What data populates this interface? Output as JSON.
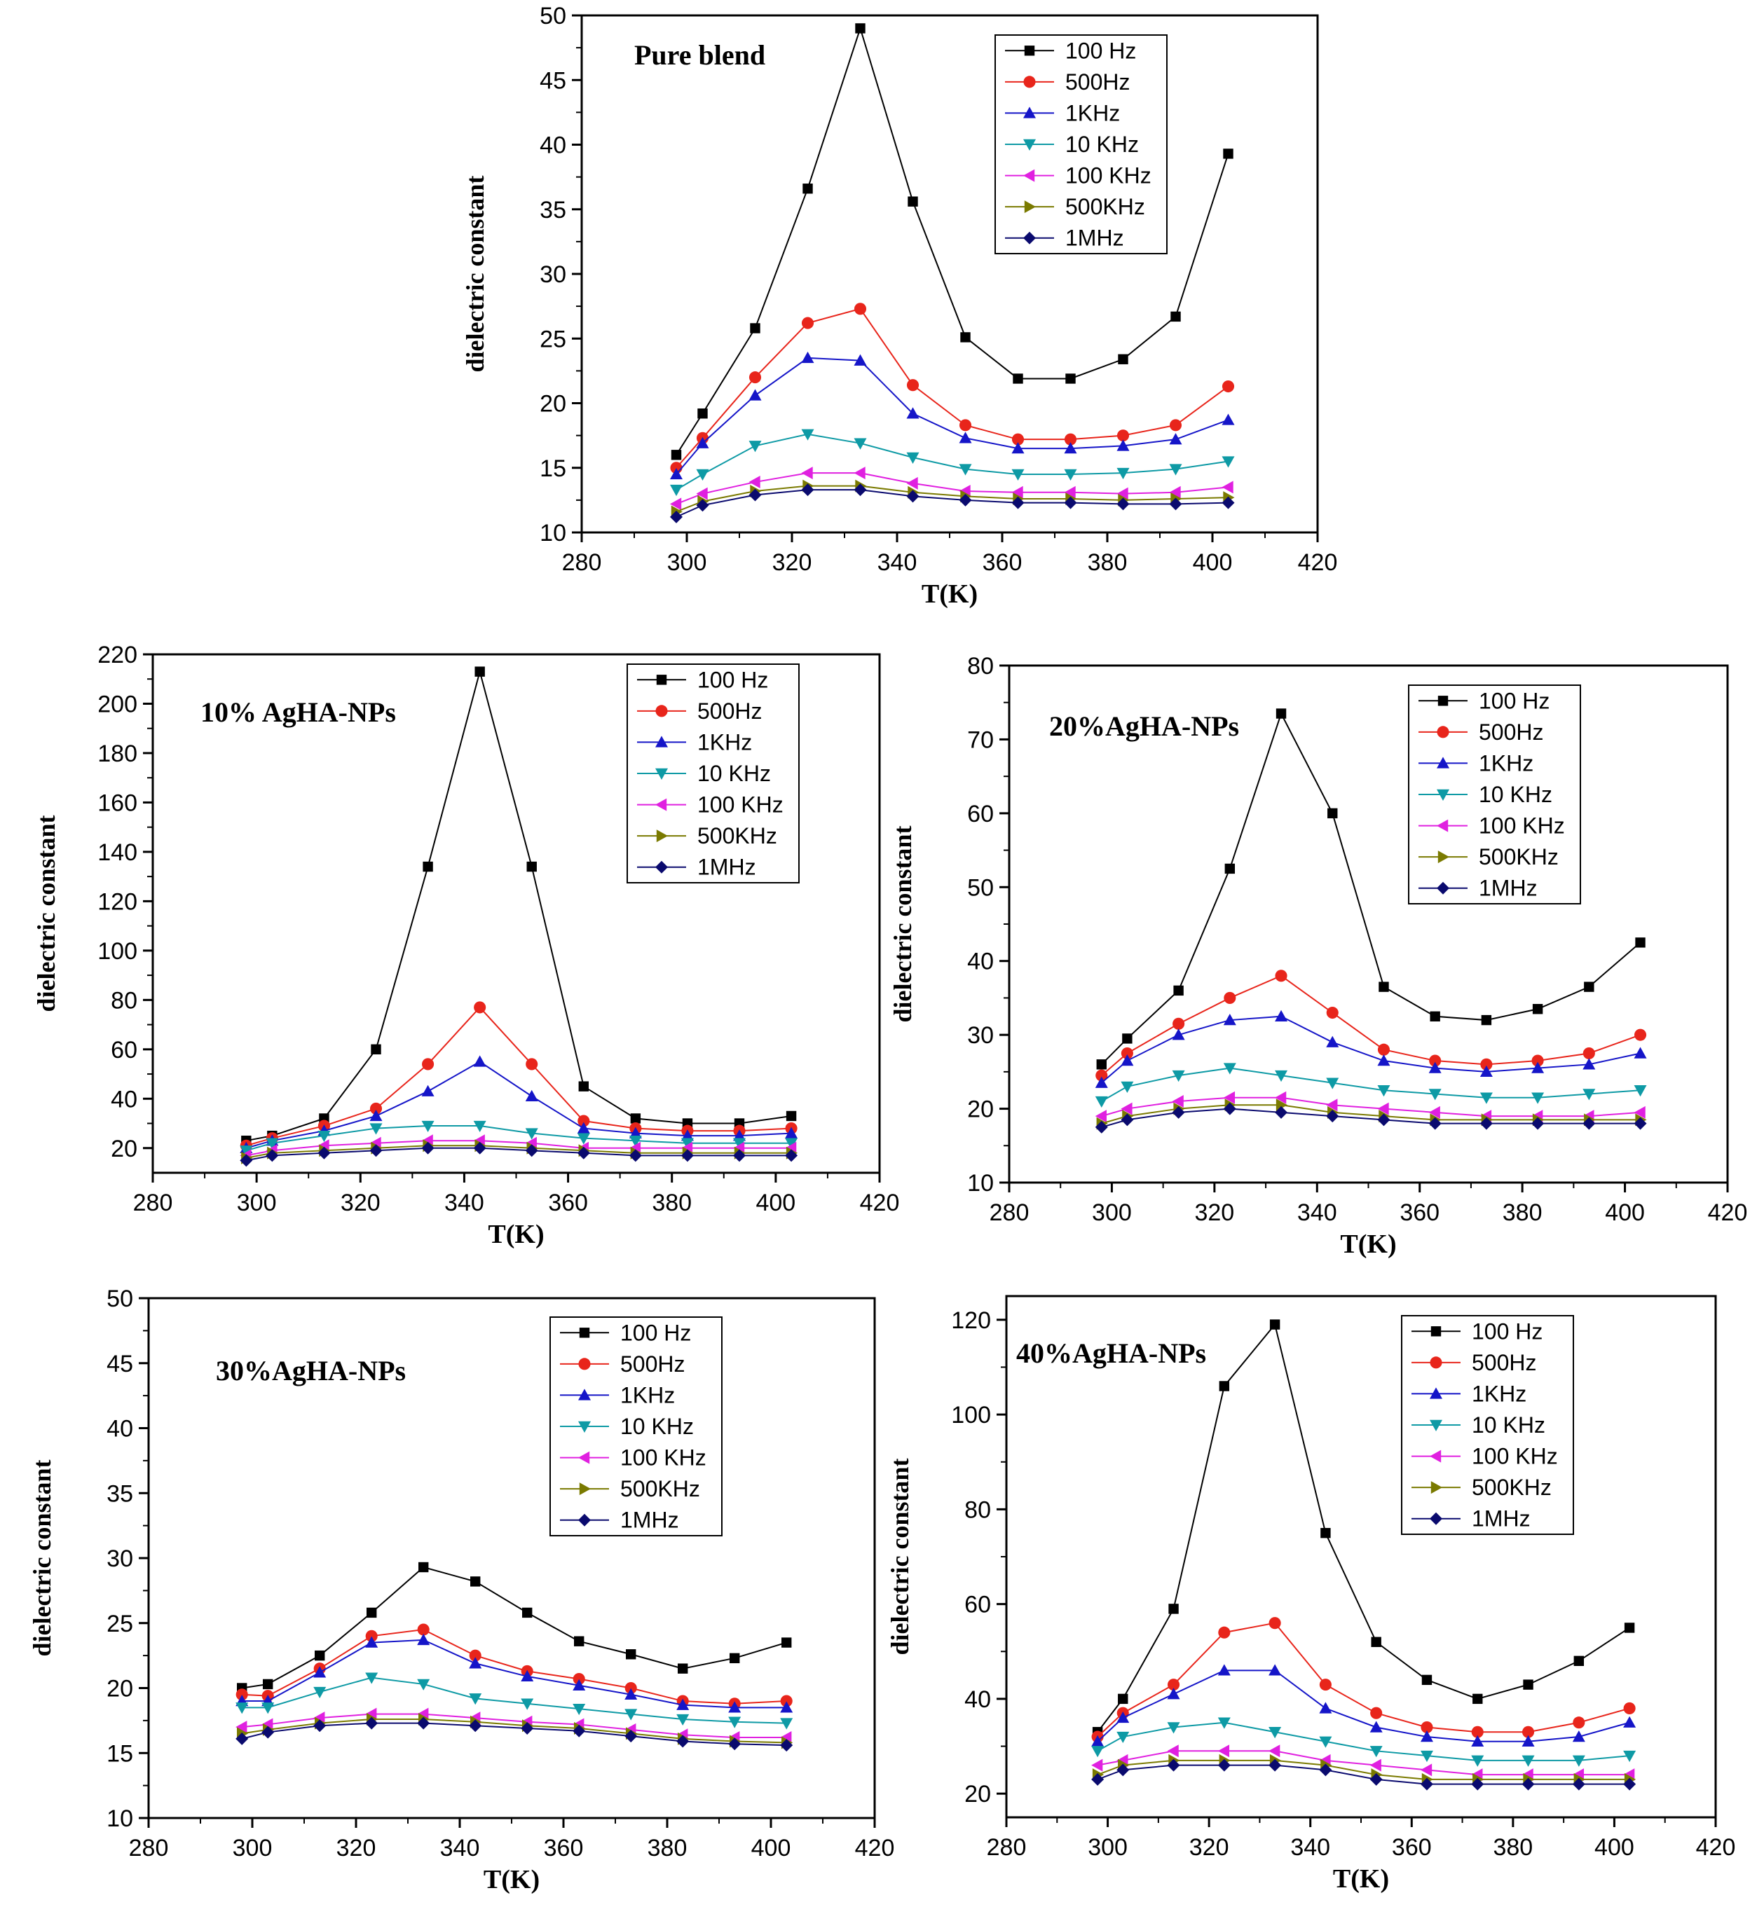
{
  "chart_data": [
    {
      "type": "line",
      "title": "Pure blend",
      "xlabel": "T(K)",
      "ylabel": "dielectric constant",
      "xlim": [
        280,
        420
      ],
      "ylim": [
        10,
        50
      ],
      "xticks": [
        280,
        300,
        320,
        340,
        360,
        380,
        400,
        420
      ],
      "yticks": [
        10,
        15,
        20,
        25,
        30,
        35,
        40,
        45,
        50
      ],
      "x": [
        298,
        303,
        313,
        323,
        333,
        343,
        353,
        363,
        373,
        383,
        393,
        403
      ],
      "legend_position": "top-right",
      "series": [
        {
          "name": "100 Hz",
          "color": "#000000",
          "marker": "square",
          "values": [
            16,
            19.2,
            25.8,
            36.6,
            49,
            35.6,
            25.1,
            21.9,
            21.9,
            23.4,
            26.7,
            39.3
          ]
        },
        {
          "name": "500Hz",
          "color": "#e8251b",
          "marker": "circle",
          "values": [
            15,
            17.3,
            22,
            26.2,
            27.3,
            21.4,
            18.3,
            17.2,
            17.2,
            17.5,
            18.3,
            21.3
          ]
        },
        {
          "name": "1KHz",
          "color": "#1515c8",
          "marker": "triangle-up",
          "values": [
            14.5,
            16.9,
            20.6,
            23.5,
            23.3,
            19.2,
            17.3,
            16.5,
            16.5,
            16.7,
            17.2,
            18.7
          ]
        },
        {
          "name": "10 KHz",
          "color": "#0e9aa5",
          "marker": "triangle-down",
          "values": [
            13.3,
            14.5,
            16.7,
            17.6,
            16.9,
            15.8,
            14.9,
            14.5,
            14.5,
            14.6,
            14.9,
            15.5
          ]
        },
        {
          "name": "100 KHz",
          "color": "#e020e0",
          "marker": "triangle-left",
          "values": [
            12.2,
            13,
            13.9,
            14.6,
            14.6,
            13.8,
            13.2,
            13.1,
            13.1,
            13,
            13.1,
            13.5
          ]
        },
        {
          "name": "500KHz",
          "color": "#7a7a00",
          "marker": "triangle-right",
          "values": [
            11.6,
            12.4,
            13.2,
            13.6,
            13.6,
            13.1,
            12.8,
            12.6,
            12.6,
            12.5,
            12.6,
            12.7
          ]
        },
        {
          "name": "1MHz",
          "color": "#0a0a6e",
          "marker": "diamond",
          "values": [
            11.2,
            12.1,
            12.9,
            13.3,
            13.3,
            12.8,
            12.5,
            12.3,
            12.3,
            12.2,
            12.2,
            12.3
          ]
        }
      ]
    },
    {
      "type": "line",
      "title": "10% AgHA-NPs",
      "xlabel": "T(K)",
      "ylabel": "dielectric constant",
      "xlim": [
        280,
        420
      ],
      "ylim": [
        10,
        220
      ],
      "xticks": [
        280,
        300,
        320,
        340,
        360,
        380,
        400,
        420
      ],
      "yticks": [
        20,
        40,
        60,
        80,
        100,
        120,
        140,
        160,
        180,
        200,
        220
      ],
      "x": [
        298,
        303,
        313,
        323,
        333,
        343,
        353,
        363,
        373,
        383,
        393,
        403
      ],
      "legend_position": "top-right",
      "series": [
        {
          "name": "100 Hz",
          "color": "#000000",
          "marker": "square",
          "values": [
            23,
            25,
            32,
            60,
            134,
            213,
            134,
            45,
            32,
            30,
            30,
            33
          ]
        },
        {
          "name": "500Hz",
          "color": "#e8251b",
          "marker": "circle",
          "values": [
            21,
            24,
            29,
            36,
            54,
            77,
            54,
            31,
            28,
            27,
            27,
            28
          ]
        },
        {
          "name": "1KHz",
          "color": "#1515c8",
          "marker": "triangle-up",
          "values": [
            20,
            23,
            27,
            33,
            43,
            55,
            41,
            28,
            26,
            25,
            25,
            26
          ]
        },
        {
          "name": "10 KHz",
          "color": "#0e9aa5",
          "marker": "triangle-down",
          "values": [
            19,
            22,
            25,
            28,
            29,
            29,
            26,
            24,
            23,
            22,
            22,
            22
          ]
        },
        {
          "name": "100 KHz",
          "color": "#e020e0",
          "marker": "triangle-left",
          "values": [
            17,
            19,
            21,
            22,
            23,
            23,
            22,
            20,
            20,
            20,
            20,
            20
          ]
        },
        {
          "name": "500KHz",
          "color": "#7a7a00",
          "marker": "triangle-right",
          "values": [
            16,
            18,
            19,
            20,
            21,
            21,
            20,
            19,
            18,
            18,
            18,
            18
          ]
        },
        {
          "name": "1MHz",
          "color": "#0a0a6e",
          "marker": "diamond",
          "values": [
            15,
            17,
            18,
            19,
            20,
            20,
            19,
            18,
            17,
            17,
            17,
            17
          ]
        }
      ]
    },
    {
      "type": "line",
      "title": "20%AgHA-NPs",
      "xlabel": "T(K)",
      "ylabel": "dielectric constant",
      "xlim": [
        280,
        420
      ],
      "ylim": [
        10,
        80
      ],
      "xticks": [
        280,
        300,
        320,
        340,
        360,
        380,
        400,
        420
      ],
      "yticks": [
        10,
        20,
        30,
        40,
        50,
        60,
        70,
        80
      ],
      "x": [
        298,
        303,
        313,
        323,
        333,
        343,
        353,
        363,
        373,
        383,
        393,
        403
      ],
      "legend_position": "top-right",
      "series": [
        {
          "name": "100 Hz",
          "color": "#000000",
          "marker": "square",
          "values": [
            26,
            29.5,
            36,
            52.5,
            73.5,
            60,
            36.5,
            32.5,
            32,
            33.5,
            36.5,
            42.5
          ]
        },
        {
          "name": "500Hz",
          "color": "#e8251b",
          "marker": "circle",
          "values": [
            24.5,
            27.5,
            31.5,
            35,
            38,
            33,
            28,
            26.5,
            26,
            26.5,
            27.5,
            30
          ]
        },
        {
          "name": "1KHz",
          "color": "#1515c8",
          "marker": "triangle-up",
          "values": [
            23.5,
            26.5,
            30,
            32,
            32.5,
            29,
            26.5,
            25.5,
            25,
            25.5,
            26,
            27.5
          ]
        },
        {
          "name": "10 KHz",
          "color": "#0e9aa5",
          "marker": "triangle-down",
          "values": [
            21,
            23,
            24.5,
            25.5,
            24.5,
            23.5,
            22.5,
            22,
            21.5,
            21.5,
            22,
            22.5
          ]
        },
        {
          "name": "100 KHz",
          "color": "#e020e0",
          "marker": "triangle-left",
          "values": [
            19,
            20,
            21,
            21.5,
            21.5,
            20.5,
            20,
            19.5,
            19,
            19,
            19,
            19.5
          ]
        },
        {
          "name": "500KHz",
          "color": "#7a7a00",
          "marker": "triangle-right",
          "values": [
            18,
            19,
            20,
            20.5,
            20.5,
            19.5,
            19,
            18.5,
            18.5,
            18.5,
            18.5,
            18.5
          ]
        },
        {
          "name": "1MHz",
          "color": "#0a0a6e",
          "marker": "diamond",
          "values": [
            17.5,
            18.5,
            19.5,
            20,
            19.5,
            19,
            18.5,
            18,
            18,
            18,
            18,
            18
          ]
        }
      ]
    },
    {
      "type": "line",
      "title": "30%AgHA-NPs",
      "xlabel": "T(K)",
      "ylabel": "dielectric constant",
      "xlim": [
        280,
        420
      ],
      "ylim": [
        10,
        50
      ],
      "xticks": [
        280,
        300,
        320,
        340,
        360,
        380,
        400,
        420
      ],
      "yticks": [
        10,
        15,
        20,
        25,
        30,
        35,
        40,
        45,
        50
      ],
      "x": [
        298,
        303,
        313,
        323,
        333,
        343,
        353,
        363,
        373,
        383,
        393,
        403
      ],
      "legend_position": "top-right",
      "series": [
        {
          "name": "100 Hz",
          "color": "#000000",
          "marker": "square",
          "values": [
            20,
            20.3,
            22.5,
            25.8,
            29.3,
            28.2,
            25.8,
            23.6,
            22.6,
            21.5,
            22.3,
            23.5
          ]
        },
        {
          "name": "500Hz",
          "color": "#e8251b",
          "marker": "circle",
          "values": [
            19.5,
            19.4,
            21.5,
            24,
            24.5,
            22.5,
            21.3,
            20.7,
            20,
            19,
            18.8,
            19
          ]
        },
        {
          "name": "1KHz",
          "color": "#1515c8",
          "marker": "triangle-up",
          "values": [
            19,
            19,
            21.2,
            23.5,
            23.7,
            21.9,
            20.9,
            20.2,
            19.5,
            18.7,
            18.5,
            18.5
          ]
        },
        {
          "name": "10 KHz",
          "color": "#0e9aa5",
          "marker": "triangle-down",
          "values": [
            18.5,
            18.5,
            19.7,
            20.8,
            20.3,
            19.2,
            18.8,
            18.4,
            18,
            17.6,
            17.4,
            17.3
          ]
        },
        {
          "name": "100 KHz",
          "color": "#e020e0",
          "marker": "triangle-left",
          "values": [
            17,
            17.2,
            17.7,
            18,
            18,
            17.7,
            17.4,
            17.2,
            16.8,
            16.4,
            16.2,
            16.2
          ]
        },
        {
          "name": "500KHz",
          "color": "#7a7a00",
          "marker": "triangle-right",
          "values": [
            16.5,
            16.8,
            17.3,
            17.6,
            17.6,
            17.4,
            17.1,
            16.9,
            16.5,
            16.1,
            15.9,
            15.8
          ]
        },
        {
          "name": "1MHz",
          "color": "#0a0a6e",
          "marker": "diamond",
          "values": [
            16.1,
            16.6,
            17.1,
            17.3,
            17.3,
            17.1,
            16.9,
            16.7,
            16.3,
            15.9,
            15.7,
            15.6
          ]
        }
      ]
    },
    {
      "type": "line",
      "title": "40%AgHA-NPs",
      "xlabel": "T(K)",
      "ylabel": "dielectric constant",
      "xlim": [
        280,
        420
      ],
      "ylim": [
        15,
        125
      ],
      "xticks": [
        280,
        300,
        320,
        340,
        360,
        380,
        400,
        420
      ],
      "yticks": [
        20,
        40,
        60,
        80,
        100,
        120
      ],
      "x": [
        298,
        303,
        313,
        323,
        333,
        343,
        353,
        363,
        373,
        383,
        393,
        403
      ],
      "legend_position": "top-right",
      "series": [
        {
          "name": "100 Hz",
          "color": "#000000",
          "marker": "square",
          "values": [
            33,
            40,
            59,
            106,
            119,
            75,
            52,
            44,
            40,
            43,
            48,
            55
          ]
        },
        {
          "name": "500Hz",
          "color": "#e8251b",
          "marker": "circle",
          "values": [
            32,
            37,
            43,
            54,
            56,
            43,
            37,
            34,
            33,
            33,
            35,
            38
          ]
        },
        {
          "name": "1KHz",
          "color": "#1515c8",
          "marker": "triangle-up",
          "values": [
            31,
            36,
            41,
            46,
            46,
            38,
            34,
            32,
            31,
            31,
            32,
            35
          ]
        },
        {
          "name": "10 KHz",
          "color": "#0e9aa5",
          "marker": "triangle-down",
          "values": [
            29,
            32,
            34,
            35,
            33,
            31,
            29,
            28,
            27,
            27,
            27,
            28
          ]
        },
        {
          "name": "100 KHz",
          "color": "#e020e0",
          "marker": "triangle-left",
          "values": [
            26,
            27,
            29,
            29,
            29,
            27,
            26,
            25,
            24,
            24,
            24,
            24
          ]
        },
        {
          "name": "500KHz",
          "color": "#7a7a00",
          "marker": "triangle-right",
          "values": [
            24,
            26,
            27,
            27,
            27,
            26,
            24,
            23,
            23,
            23,
            23,
            23
          ]
        },
        {
          "name": "1MHz",
          "color": "#0a0a6e",
          "marker": "diamond",
          "values": [
            23,
            25,
            26,
            26,
            26,
            25,
            23,
            22,
            22,
            22,
            22,
            22
          ]
        }
      ]
    }
  ]
}
